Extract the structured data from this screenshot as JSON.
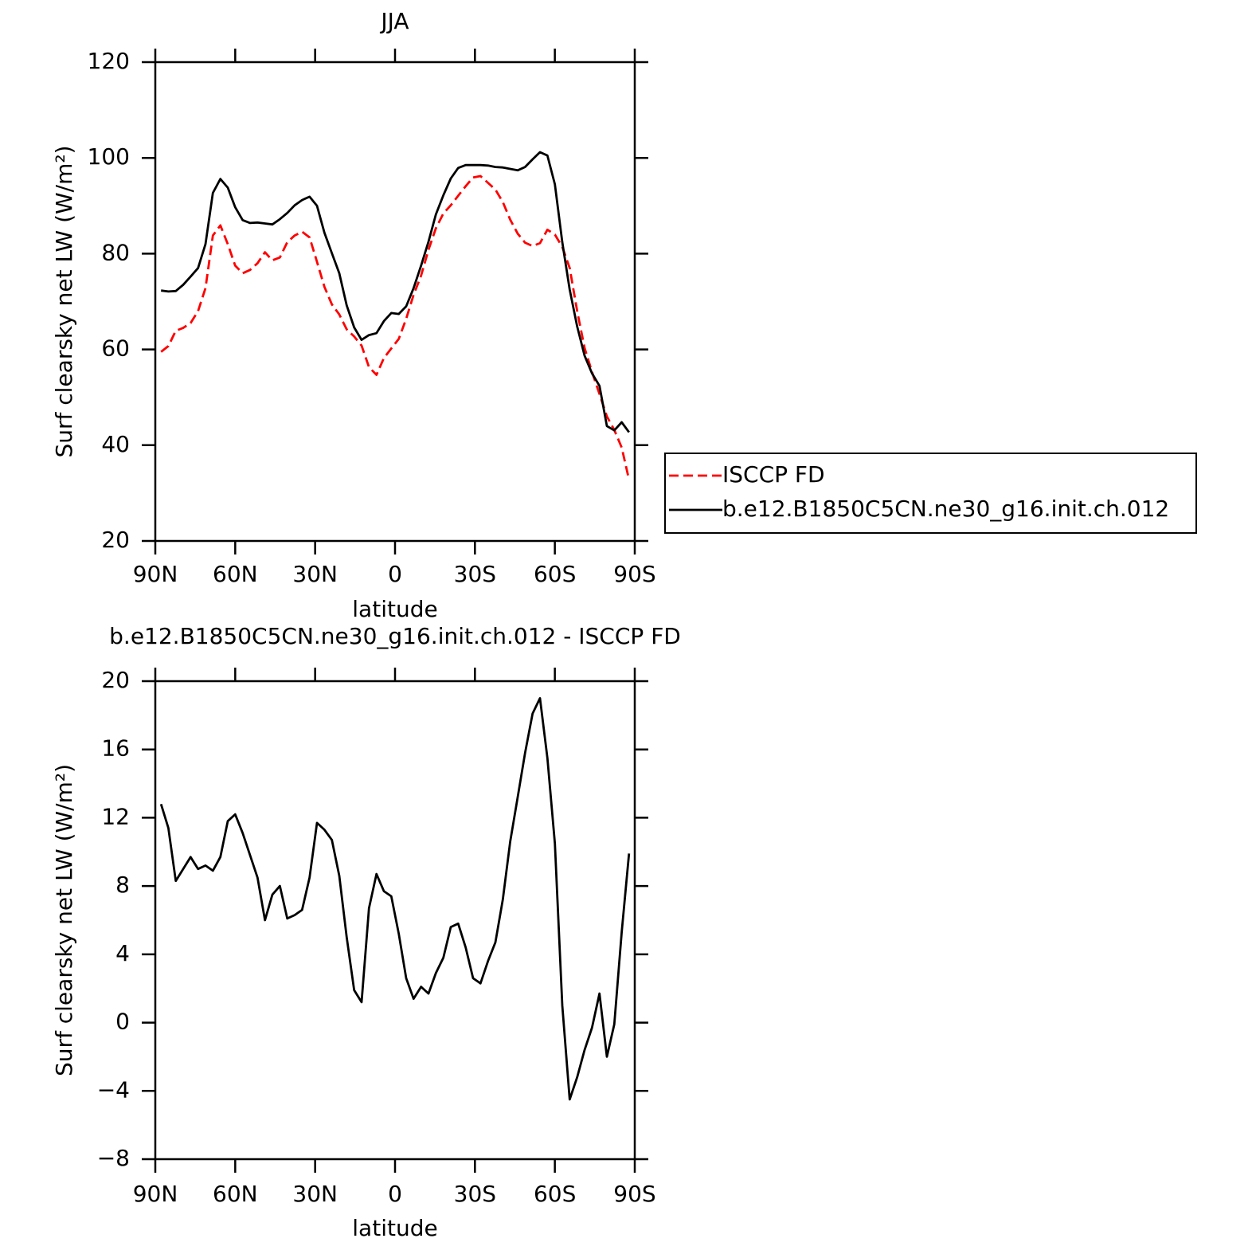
{
  "chart_data": [
    {
      "type": "line",
      "title": "JJA",
      "x_label": "latitude",
      "y_label": "Surf clearsky net LW (W/m²)",
      "x": [
        87.86,
        85.1,
        82.31,
        79.53,
        76.74,
        73.95,
        71.16,
        68.37,
        65.58,
        62.79,
        60.0,
        57.21,
        54.42,
        51.63,
        48.84,
        46.04,
        43.25,
        40.46,
        37.67,
        34.88,
        32.09,
        29.3,
        26.51,
        23.72,
        20.93,
        18.14,
        15.35,
        12.56,
        9.77,
        6.98,
        4.19,
        1.4,
        -1.4,
        -4.19,
        -6.98,
        -9.77,
        -12.56,
        -15.35,
        -18.14,
        -20.93,
        -23.72,
        -26.51,
        -29.3,
        -32.09,
        -34.88,
        -37.67,
        -40.46,
        -43.25,
        -46.04,
        -48.84,
        -51.63,
        -54.42,
        -57.21,
        -60.0,
        -62.79,
        -65.58,
        -68.37,
        -71.16,
        -73.95,
        -76.74,
        -79.53,
        -82.31,
        -85.1,
        -87.86
      ],
      "xlim": [
        90,
        -90
      ],
      "xticks": [
        {
          "value": 90,
          "label": "90N"
        },
        {
          "value": 60,
          "label": "60N"
        },
        {
          "value": 30,
          "label": "30N"
        },
        0,
        {
          "value": -30,
          "label": "30S"
        },
        {
          "value": -60,
          "label": "60S"
        },
        {
          "value": -90,
          "label": "90S"
        }
      ],
      "ylim": [
        20,
        120
      ],
      "yticks": [
        20,
        40,
        60,
        80,
        100,
        120
      ],
      "legend": "right",
      "series": [
        {
          "name": "ISCCP FD",
          "color": "#ff0000",
          "linestyle": "dashed",
          "values": [
            59.5,
            60.7,
            63.9,
            64.5,
            65.5,
            68,
            72.8,
            83.8,
            85.9,
            82,
            77.5,
            75.9,
            76.6,
            78,
            80.3,
            78.6,
            79.2,
            82.4,
            83.8,
            84.6,
            83.4,
            78.3,
            73.1,
            69.4,
            67.3,
            64.2,
            62.7,
            60.8,
            56.3,
            54.7,
            58.2,
            60.2,
            62.2,
            66.4,
            71.4,
            75.4,
            80.8,
            85.3,
            88.4,
            90.1,
            92.1,
            94.1,
            95.9,
            96.2,
            94.8,
            93.4,
            90.8,
            87.1,
            84.2,
            82.3,
            81.6,
            82.2,
            85,
            84,
            81.4,
            77,
            68,
            60.3,
            55.3,
            50.7,
            46,
            43.2,
            39.5,
            32.8
          ]
        },
        {
          "name": "b.e12.B1850C5CN.ne30_g16.init.ch.012",
          "color": "#000000",
          "linestyle": "solid",
          "values": [
            72.3,
            72.1,
            72.2,
            73.5,
            75.2,
            77,
            82,
            92.7,
            95.6,
            93.8,
            89.7,
            87,
            86.4,
            86.5,
            86.3,
            86.1,
            87.2,
            88.5,
            90.1,
            91.2,
            91.9,
            90,
            84.4,
            80.1,
            75.9,
            69.2,
            64.6,
            62,
            63,
            63.4,
            65.9,
            67.6,
            67.4,
            69,
            72.8,
            77.5,
            82.5,
            88.2,
            92.2,
            95.7,
            97.9,
            98.5,
            98.5,
            98.5,
            98.4,
            98.1,
            98,
            97.7,
            97.4,
            98.1,
            99.7,
            101.2,
            100.5,
            94.5,
            82.4,
            72.5,
            64.8,
            58.7,
            55,
            52.4,
            44,
            43.1,
            44.8,
            42.7
          ]
        }
      ]
    },
    {
      "type": "line",
      "title": "b.e12.B1850C5CN.ne30_g16.init.ch.012 - ISCCP FD",
      "x_label": "latitude",
      "y_label": "Surf clearsky net LW (W/m²)",
      "x": [
        87.86,
        85.1,
        82.31,
        79.53,
        76.74,
        73.95,
        71.16,
        68.37,
        65.58,
        62.79,
        60.0,
        57.21,
        54.42,
        51.63,
        48.84,
        46.04,
        43.25,
        40.46,
        37.67,
        34.88,
        32.09,
        29.3,
        26.51,
        23.72,
        20.93,
        18.14,
        15.35,
        12.56,
        9.77,
        6.98,
        4.19,
        1.4,
        -1.4,
        -4.19,
        -6.98,
        -9.77,
        -12.56,
        -15.35,
        -18.14,
        -20.93,
        -23.72,
        -26.51,
        -29.3,
        -32.09,
        -34.88,
        -37.67,
        -40.46,
        -43.25,
        -46.04,
        -48.84,
        -51.63,
        -54.42,
        -57.21,
        -60.0,
        -62.79,
        -65.58,
        -68.37,
        -71.16,
        -73.95,
        -76.74,
        -79.53,
        -82.31,
        -85.1,
        -87.86
      ],
      "xlim": [
        90,
        -90
      ],
      "xticks": [
        {
          "value": 90,
          "label": "90N"
        },
        {
          "value": 60,
          "label": "60N"
        },
        {
          "value": 30,
          "label": "30N"
        },
        0,
        {
          "value": -30,
          "label": "30S"
        },
        {
          "value": -60,
          "label": "60S"
        },
        {
          "value": -90,
          "label": "90S"
        }
      ],
      "ylim": [
        -8,
        20
      ],
      "yticks": [
        {
          "value": -8,
          "label": "−8"
        },
        {
          "value": -4,
          "label": "−4"
        },
        0,
        4,
        8,
        12,
        16,
        20
      ],
      "series": [
        {
          "color": "#000000",
          "linestyle": "solid",
          "values": [
            12.8,
            11.4,
            8.3,
            9.0,
            9.7,
            9.0,
            9.2,
            8.9,
            9.7,
            11.8,
            12.2,
            11.1,
            9.8,
            8.5,
            6.0,
            7.5,
            8.0,
            6.1,
            6.3,
            6.6,
            8.5,
            11.7,
            11.3,
            10.7,
            8.6,
            5.0,
            1.9,
            1.2,
            6.7,
            8.7,
            7.7,
            7.4,
            5.2,
            2.6,
            1.4,
            2.1,
            1.7,
            2.9,
            3.8,
            5.6,
            5.8,
            4.4,
            2.6,
            2.3,
            3.6,
            4.7,
            7.2,
            10.6,
            13.2,
            15.8,
            18.1,
            19.0,
            15.5,
            10.5,
            1.0,
            -4.5,
            -3.2,
            -1.6,
            -0.3,
            1.7,
            -2.0,
            -0.1,
            5.3,
            9.9
          ]
        }
      ]
    }
  ]
}
